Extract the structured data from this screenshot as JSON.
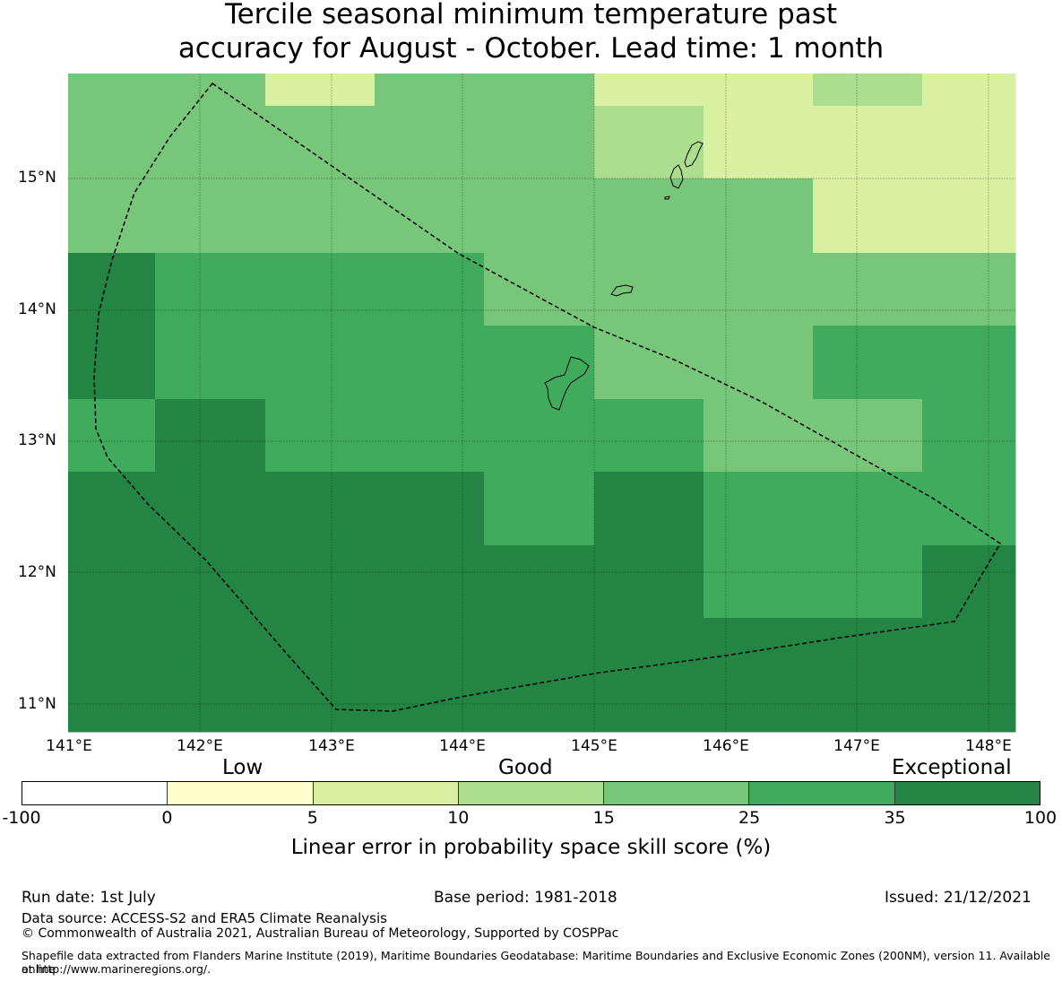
{
  "title_line1": "Tercile seasonal minimum temperature past",
  "title_line2": "accuracy for August - October. Lead time: 1 month",
  "map": {
    "lat_labels": [
      "15°N",
      "14°N",
      "13°N",
      "12°N",
      "11°N"
    ],
    "lon_labels": [
      "141°E",
      "142°E",
      "143°E",
      "144°E",
      "145°E",
      "146°E",
      "147°E",
      "148°E"
    ],
    "grid_rows": [
      [
        "15-25",
        "15-25",
        "5-10",
        "15-25",
        "15-25",
        "5-10",
        "5-10",
        "10-15",
        "5-10"
      ],
      [
        "15-25",
        "15-25",
        "15-25",
        "15-25",
        "15-25",
        "10-15",
        "5-10",
        "5-10",
        "5-10"
      ],
      [
        "15-25",
        "15-25",
        "15-25",
        "15-25",
        "15-25",
        "15-25",
        "15-25",
        "5-10",
        "5-10"
      ],
      [
        "35-100",
        "25-35",
        "25-35",
        "25-35",
        "15-25",
        "15-25",
        "15-25",
        "15-25",
        "15-25"
      ],
      [
        "35-100",
        "25-35",
        "25-35",
        "25-35",
        "25-35",
        "15-25",
        "15-25",
        "25-35",
        "25-35"
      ],
      [
        "25-35",
        "35-100",
        "25-35",
        "25-35",
        "25-35",
        "25-35",
        "15-25",
        "15-25",
        "25-35"
      ],
      [
        "35-100",
        "35-100",
        "35-100",
        "35-100",
        "25-35",
        "35-100",
        "25-35",
        "25-35",
        "25-35"
      ],
      [
        "35-100",
        "35-100",
        "35-100",
        "35-100",
        "35-100",
        "35-100",
        "25-35",
        "25-35",
        "35-100"
      ],
      [
        "35-100",
        "35-100",
        "35-100",
        "35-100",
        "35-100",
        "35-100",
        "35-100",
        "35-100",
        "35-100"
      ]
    ]
  },
  "colorbar": {
    "category_low": "Low",
    "category_good": "Good",
    "category_exceptional": "Exceptional",
    "bins": [
      {
        "range": "-100-0",
        "color": "#ffffff"
      },
      {
        "range": "0-5",
        "color": "#ffffcc"
      },
      {
        "range": "5-10",
        "color": "#d9f0a3"
      },
      {
        "range": "10-15",
        "color": "#addd8e"
      },
      {
        "range": "15-25",
        "color": "#78c679"
      },
      {
        "range": "25-35",
        "color": "#41ab5d"
      },
      {
        "range": "35-100",
        "color": "#238443"
      }
    ],
    "ticks": [
      "-100",
      "0",
      "5",
      "10",
      "15",
      "25",
      "35",
      "100"
    ],
    "label": "Linear error in probability space skill score (%)"
  },
  "footer": {
    "run_date": "Run date: 1st July",
    "base_period": "Base period: 1981-2018",
    "issued": "Issued: 21/12/2021",
    "data_source": "Data source: ACCESS-S2 and ERA5 Climate Reanalysis",
    "copyright": "© Commonwealth of Australia 2021, Australian Bureau of Meteorology, Supported by COSPPac",
    "shapefile_line1": "Shapefile data extracted from Flanders Marine Institute (2019), Maritime Boundaries Geodatabase: Maritime Boundaries and Exclusive Economic Zones (200NM), version 11. Available online",
    "shapefile_line2": "at http://www.marineregions.org/."
  }
}
